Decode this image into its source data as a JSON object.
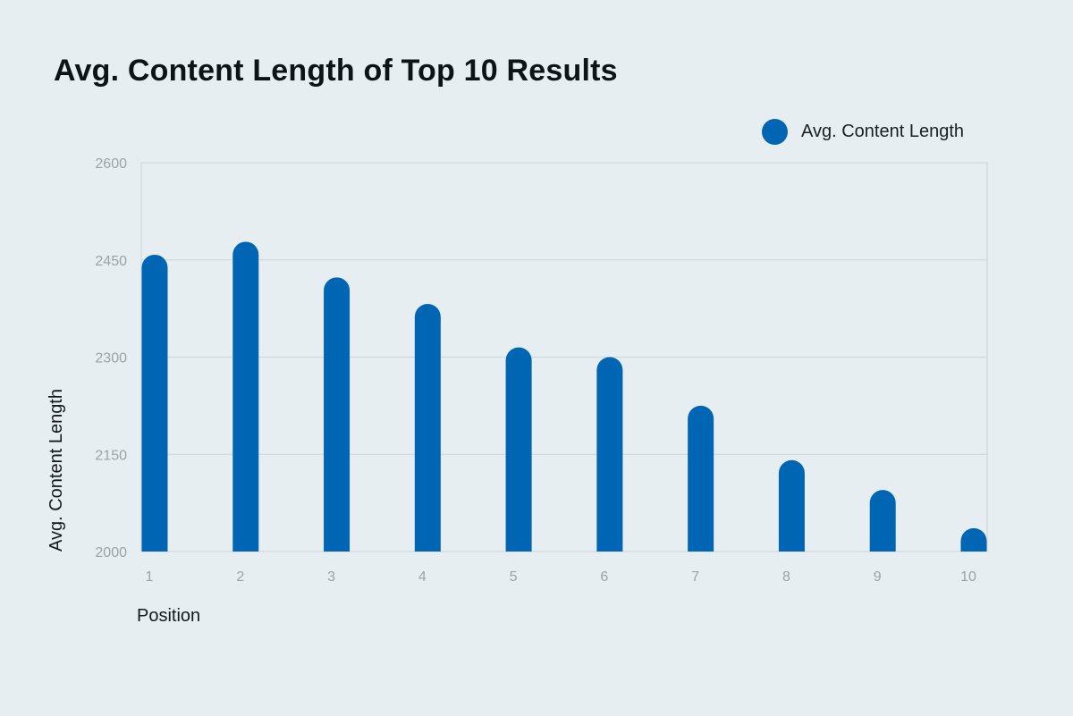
{
  "chart_data": {
    "type": "bar",
    "title": "Avg. Content Length of Top 10 Results",
    "xlabel": "Position",
    "ylabel": "Avg. Content Length",
    "categories": [
      "1",
      "2",
      "3",
      "4",
      "5",
      "6",
      "7",
      "8",
      "9",
      "10"
    ],
    "series": [
      {
        "name": "Avg. Content Length",
        "values": [
          2458,
          2478,
          2423,
          2382,
          2315,
          2300,
          2225,
          2141,
          2095,
          2036
        ],
        "color": "#0066b3"
      }
    ],
    "ylim": [
      2000,
      2600
    ],
    "yticks": [
      "2000",
      "2150",
      "2300",
      "2450",
      "2600"
    ],
    "grid": true,
    "legend_position": "top-right"
  }
}
